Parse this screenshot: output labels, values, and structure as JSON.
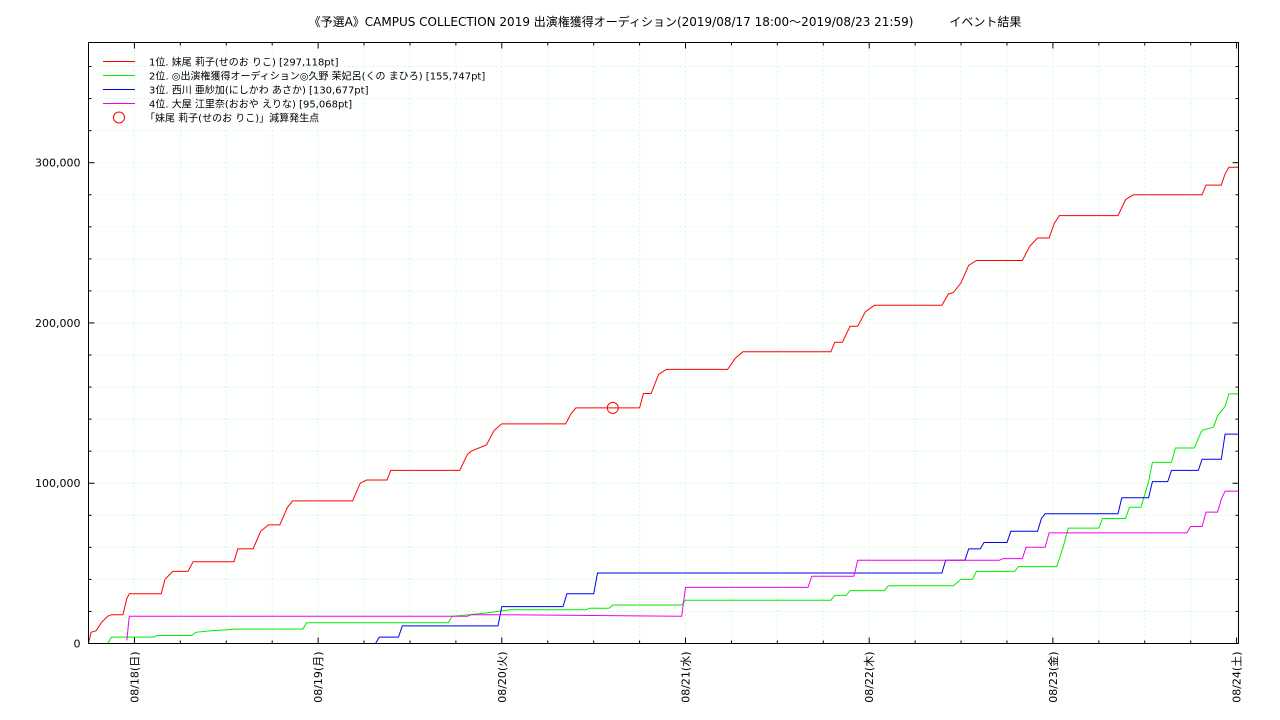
{
  "chart_data": {
    "type": "line",
    "title": "《予選A》CAMPUS COLLECTION 2019 出演権獲得オーディション(2019/08/17 18:00～2019/08/23 21:59)　　　イベント結果",
    "xlabel": "",
    "ylabel": "",
    "x_range": [
      "2019/08/17 18:00",
      "2019/08/24 00:15"
    ],
    "ylim": [
      0,
      375000
    ],
    "y_ticks": [
      0,
      100000,
      200000,
      300000
    ],
    "y_tick_labels": [
      "0",
      "100,000",
      "200,000",
      "300,000"
    ],
    "x_ticks": [
      "2019/08/18 00:00",
      "2019/08/19 00:00",
      "2019/08/20 00:00",
      "2019/08/21 00:00",
      "2019/08/22 00:00",
      "2019/08/23 00:00",
      "2019/08/24 00:00"
    ],
    "x_tick_labels": [
      "08/18(日)",
      "08/19(月)",
      "08/20(火)",
      "08/21(水)",
      "08/22(木)",
      "08/23(金)",
      "08/24(土)"
    ],
    "grid": true,
    "legend_position": "top-left",
    "series": [
      {
        "name": "1位. 妹尾 莉子(せのお りこ) [297,118pt]",
        "color": "#ff0000",
        "points": [
          [
            "2019/08/17 18:00",
            0
          ],
          [
            "2019/08/17 18:20",
            7000
          ],
          [
            "2019/08/17 19:00",
            8000
          ],
          [
            "2019/08/17 19:40",
            13000
          ],
          [
            "2019/08/17 20:30",
            17000
          ],
          [
            "2019/08/17 21:00",
            18000
          ],
          [
            "2019/08/17 22:30",
            18000
          ],
          [
            "2019/08/17 23:00",
            28000
          ],
          [
            "2019/08/17 23:20",
            31000
          ],
          [
            "2019/08/18 03:30",
            31000
          ],
          [
            "2019/08/18 04:00",
            40000
          ],
          [
            "2019/08/18 05:00",
            45000
          ],
          [
            "2019/08/18 07:00",
            45000
          ],
          [
            "2019/08/18 07:40",
            51000
          ],
          [
            "2019/08/18 13:00",
            51000
          ],
          [
            "2019/08/18 13:30",
            59000
          ],
          [
            "2019/08/18 15:30",
            59000
          ],
          [
            "2019/08/18 16:30",
            70000
          ],
          [
            "2019/08/18 17:30",
            74000
          ],
          [
            "2019/08/18 19:00",
            74000
          ],
          [
            "2019/08/18 20:00",
            85000
          ],
          [
            "2019/08/18 20:40",
            89000
          ],
          [
            "2019/08/19 04:30",
            89000
          ],
          [
            "2019/08/19 05:30",
            100000
          ],
          [
            "2019/08/19 06:20",
            102000
          ],
          [
            "2019/08/19 09:00",
            102000
          ],
          [
            "2019/08/19 09:30",
            108000
          ],
          [
            "2019/08/19 18:30",
            108000
          ],
          [
            "2019/08/19 19:30",
            118000
          ],
          [
            "2019/08/19 20:00",
            120000
          ],
          [
            "2019/08/19 22:00",
            124000
          ],
          [
            "2019/08/19 23:00",
            133000
          ],
          [
            "2019/08/20 00:00",
            137000
          ],
          [
            "2019/08/20 08:20",
            137000
          ],
          [
            "2019/08/20 09:00",
            143000
          ],
          [
            "2019/08/20 09:40",
            147000
          ],
          [
            "2019/08/20 18:00",
            147000
          ],
          [
            "2019/08/20 18:30",
            156000
          ],
          [
            "2019/08/20 19:30",
            156000
          ],
          [
            "2019/08/20 20:30",
            168000
          ],
          [
            "2019/08/20 21:30",
            171000
          ],
          [
            "2019/08/21 05:30",
            171000
          ],
          [
            "2019/08/21 06:30",
            178000
          ],
          [
            "2019/08/21 07:30",
            182000
          ],
          [
            "2019/08/21 19:00",
            182000
          ],
          [
            "2019/08/21 19:30",
            188000
          ],
          [
            "2019/08/21 20:30",
            188000
          ],
          [
            "2019/08/21 21:30",
            198000
          ],
          [
            "2019/08/21 22:30",
            198000
          ],
          [
            "2019/08/21 23:30",
            207000
          ],
          [
            "2019/08/22 00:40",
            211000
          ],
          [
            "2019/08/22 09:30",
            211000
          ],
          [
            "2019/08/22 10:20",
            218000
          ],
          [
            "2019/08/22 11:00",
            219000
          ],
          [
            "2019/08/22 12:00",
            225000
          ],
          [
            "2019/08/22 13:00",
            236000
          ],
          [
            "2019/08/22 14:00",
            239000
          ],
          [
            "2019/08/22 20:00",
            239000
          ],
          [
            "2019/08/22 21:00",
            248000
          ],
          [
            "2019/08/22 22:00",
            253000
          ],
          [
            "2019/08/22 23:30",
            253000
          ],
          [
            "2019/08/23 00:10",
            262000
          ],
          [
            "2019/08/23 00:50",
            267000
          ],
          [
            "2019/08/23 08:30",
            267000
          ],
          [
            "2019/08/23 09:30",
            277000
          ],
          [
            "2019/08/23 10:30",
            280000
          ],
          [
            "2019/08/23 19:30",
            280000
          ],
          [
            "2019/08/23 20:00",
            286000
          ],
          [
            "2019/08/23 22:00",
            286000
          ],
          [
            "2019/08/23 22:30",
            293000
          ],
          [
            "2019/08/23 23:00",
            297118
          ],
          [
            "2019/08/24 00:15",
            297118
          ]
        ]
      },
      {
        "name": "2位. ◎出演権獲得オーディション◎久野 茉妃呂(くの まひろ) [155,747pt]",
        "color": "#00ee00",
        "points": [
          [
            "2019/08/17 20:30",
            0
          ],
          [
            "2019/08/17 21:00",
            4000
          ],
          [
            "2019/08/18 02:30",
            4000
          ],
          [
            "2019/08/18 03:00",
            5000
          ],
          [
            "2019/08/18 07:30",
            5000
          ],
          [
            "2019/08/18 08:00",
            7000
          ],
          [
            "2019/08/18 10:00",
            8000
          ],
          [
            "2019/08/18 12:00",
            8500
          ],
          [
            "2019/08/18 13:00",
            9000
          ],
          [
            "2019/08/18 22:00",
            9000
          ],
          [
            "2019/08/18 22:30",
            13000
          ],
          [
            "2019/08/19 17:00",
            13000
          ],
          [
            "2019/08/19 17:30",
            17000
          ],
          [
            "2019/08/19 22:00",
            19000
          ],
          [
            "2019/08/20 01:00",
            21000
          ],
          [
            "2019/08/20 11:00",
            21000
          ],
          [
            "2019/08/20 11:30",
            22000
          ],
          [
            "2019/08/20 14:00",
            22000
          ],
          [
            "2019/08/20 14:30",
            24000
          ],
          [
            "2019/08/20 23:30",
            24000
          ],
          [
            "2019/08/21 00:00",
            27000
          ],
          [
            "2019/08/21 19:00",
            27000
          ],
          [
            "2019/08/21 19:30",
            30000
          ],
          [
            "2019/08/21 21:00",
            30000
          ],
          [
            "2019/08/21 21:30",
            33000
          ],
          [
            "2019/08/22 02:00",
            33000
          ],
          [
            "2019/08/22 02:30",
            36000
          ],
          [
            "2019/08/22 11:00",
            36000
          ],
          [
            "2019/08/22 12:00",
            40000
          ],
          [
            "2019/08/22 13:30",
            40000
          ],
          [
            "2019/08/22 14:00",
            45000
          ],
          [
            "2019/08/22 19:00",
            45000
          ],
          [
            "2019/08/22 19:30",
            48000
          ],
          [
            "2019/08/23 00:30",
            48000
          ],
          [
            "2019/08/23 01:20",
            60000
          ],
          [
            "2019/08/23 02:00",
            72000
          ],
          [
            "2019/08/23 06:00",
            72000
          ],
          [
            "2019/08/23 06:30",
            78000
          ],
          [
            "2019/08/23 09:30",
            78000
          ],
          [
            "2019/08/23 10:00",
            85000
          ],
          [
            "2019/08/23 11:30",
            85000
          ],
          [
            "2019/08/23 12:30",
            101000
          ],
          [
            "2019/08/23 13:00",
            113000
          ],
          [
            "2019/08/23 15:30",
            113000
          ],
          [
            "2019/08/23 16:00",
            122000
          ],
          [
            "2019/08/23 18:30",
            122000
          ],
          [
            "2019/08/23 19:00",
            128000
          ],
          [
            "2019/08/23 19:30",
            133000
          ],
          [
            "2019/08/23 21:00",
            135000
          ],
          [
            "2019/08/23 21:30",
            142000
          ],
          [
            "2019/08/23 22:30",
            148000
          ],
          [
            "2019/08/23 23:00",
            155747
          ],
          [
            "2019/08/24 00:15",
            155747
          ]
        ]
      },
      {
        "name": "3位. 西川 亜紗加(にしかわ あさか) [130,677pt]",
        "color": "#0000ee",
        "points": [
          [
            "2019/08/19 07:30",
            0
          ],
          [
            "2019/08/19 08:00",
            4000
          ],
          [
            "2019/08/19 10:30",
            4000
          ],
          [
            "2019/08/19 11:00",
            11000
          ],
          [
            "2019/08/19 23:30",
            11000
          ],
          [
            "2019/08/20 00:00",
            23000
          ],
          [
            "2019/08/20 08:00",
            23000
          ],
          [
            "2019/08/20 08:30",
            31000
          ],
          [
            "2019/08/20 12:00",
            31000
          ],
          [
            "2019/08/20 12:30",
            44000
          ],
          [
            "2019/08/22 09:30",
            44000
          ],
          [
            "2019/08/22 10:00",
            52000
          ],
          [
            "2019/08/22 12:30",
            52000
          ],
          [
            "2019/08/22 13:00",
            59000
          ],
          [
            "2019/08/22 14:30",
            59000
          ],
          [
            "2019/08/22 15:00",
            63000
          ],
          [
            "2019/08/22 18:00",
            63000
          ],
          [
            "2019/08/22 18:30",
            70000
          ],
          [
            "2019/08/22 22:00",
            70000
          ],
          [
            "2019/08/22 22:30",
            78000
          ],
          [
            "2019/08/22 23:00",
            81000
          ],
          [
            "2019/08/23 08:30",
            81000
          ],
          [
            "2019/08/23 09:00",
            91000
          ],
          [
            "2019/08/23 12:30",
            91000
          ],
          [
            "2019/08/23 13:00",
            101000
          ],
          [
            "2019/08/23 15:00",
            101000
          ],
          [
            "2019/08/23 15:30",
            108000
          ],
          [
            "2019/08/23 19:00",
            108000
          ],
          [
            "2019/08/23 19:30",
            115000
          ],
          [
            "2019/08/23 22:00",
            115000
          ],
          [
            "2019/08/23 22:30",
            130677
          ],
          [
            "2019/08/24 00:15",
            130677
          ]
        ]
      },
      {
        "name": "4位. 大屋 江里奈(おおや えりな) [95,068pt]",
        "color": "#ee00ee",
        "points": [
          [
            "2019/08/17 23:00",
            2000
          ],
          [
            "2019/08/17 23:20",
            17000
          ],
          [
            "2019/08/19 19:30",
            17000
          ],
          [
            "2019/08/19 20:00",
            18000
          ],
          [
            "2019/08/20 00:00",
            18000
          ],
          [
            "2019/08/20 23:30",
            17000
          ],
          [
            "2019/08/21 00:00",
            35000
          ],
          [
            "2019/08/21 16:00",
            35000
          ],
          [
            "2019/08/21 16:30",
            42000
          ],
          [
            "2019/08/21 22:00",
            42000
          ],
          [
            "2019/08/21 22:30",
            52000
          ],
          [
            "2019/08/22 17:00",
            52000
          ],
          [
            "2019/08/22 17:30",
            53000
          ],
          [
            "2019/08/22 20:00",
            53000
          ],
          [
            "2019/08/22 20:30",
            60000
          ],
          [
            "2019/08/22 23:00",
            60000
          ],
          [
            "2019/08/22 23:30",
            69000
          ],
          [
            "2019/08/23 17:30",
            69000
          ],
          [
            "2019/08/23 18:00",
            73000
          ],
          [
            "2019/08/23 19:30",
            73000
          ],
          [
            "2019/08/23 20:00",
            82000
          ],
          [
            "2019/08/23 21:30",
            82000
          ],
          [
            "2019/08/23 22:00",
            90000
          ],
          [
            "2019/08/23 22:30",
            95068
          ],
          [
            "2019/08/24 00:15",
            95068
          ]
        ]
      }
    ],
    "markers": [
      {
        "name": "「妹尾 莉子(せのお りこ)」減算発生点",
        "color": "#ff0000",
        "shape": "open-circle",
        "points": [
          [
            "2019/08/20 14:30",
            147000
          ]
        ]
      }
    ]
  }
}
